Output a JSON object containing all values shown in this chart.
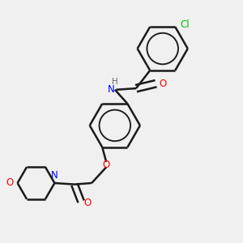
{
  "bg_color": "#f0f0f0",
  "line_color": "#1a1a1a",
  "bond_width": 1.8,
  "atom_colors": {
    "N": "#0000ff",
    "O": "#ff0000",
    "Cl": "#00bb00",
    "C": "#1a1a1a",
    "H": "#606060"
  },
  "font_size": 8.5,
  "aromatic_inner_scale": 0.62
}
